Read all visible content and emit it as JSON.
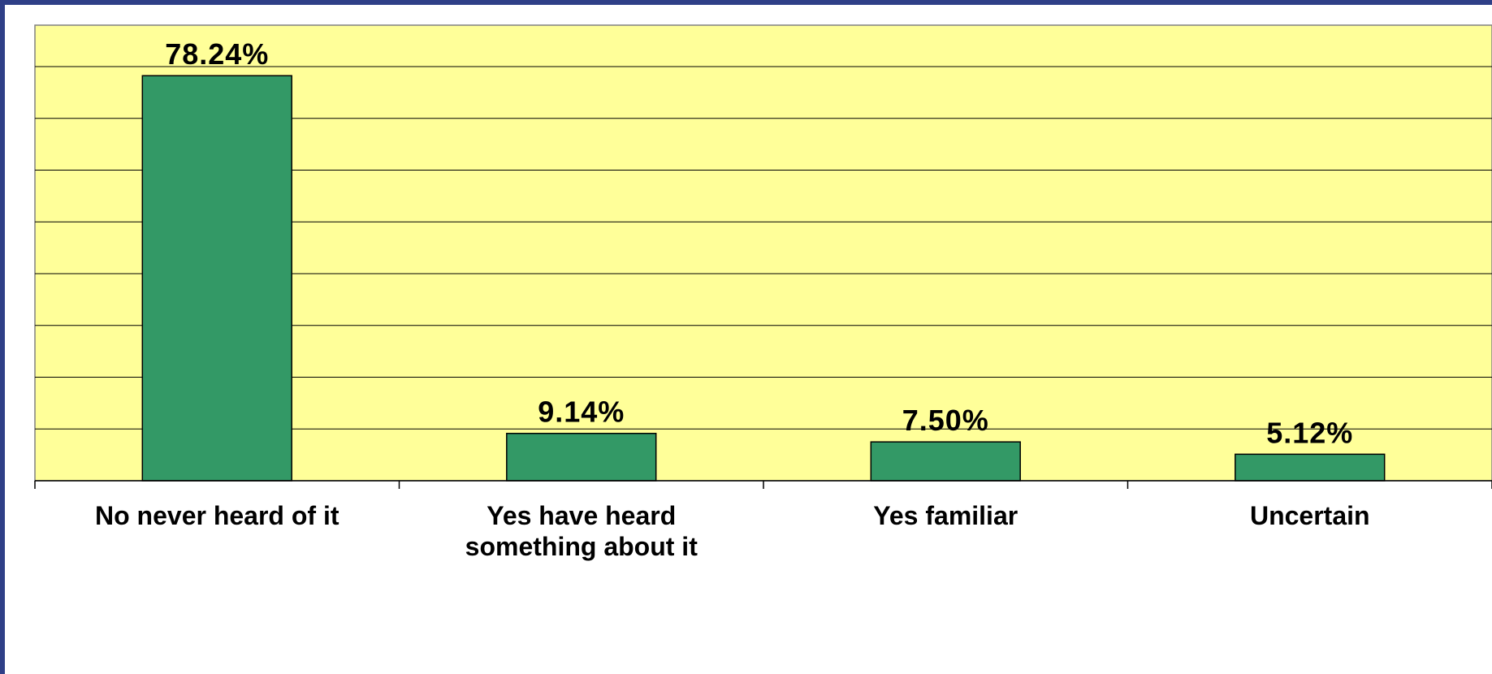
{
  "chart_data": {
    "type": "bar",
    "categories": [
      "No never heard of it",
      "Yes have heard something about it",
      "Yes familiar",
      "Uncertain"
    ],
    "category_lines": [
      [
        "No never heard of it"
      ],
      [
        "Yes have heard",
        "something about it"
      ],
      [
        "Yes familiar"
      ],
      [
        "Uncertain"
      ]
    ],
    "values": [
      78.24,
      9.14,
      7.5,
      5.12
    ],
    "data_labels": [
      "78.24%",
      "9.14%",
      "7.50%",
      "5.12%"
    ],
    "ylim": [
      0,
      88
    ],
    "y_gridlines": [
      10,
      20,
      30,
      40,
      50,
      60,
      70,
      80
    ],
    "grid": true,
    "legend": false,
    "colors": {
      "plot_background": "#ffff99",
      "bar_fill": "#339966",
      "bar_stroke": "#000000",
      "gridline": "#000000",
      "frame_border": "#2f3f87"
    }
  }
}
